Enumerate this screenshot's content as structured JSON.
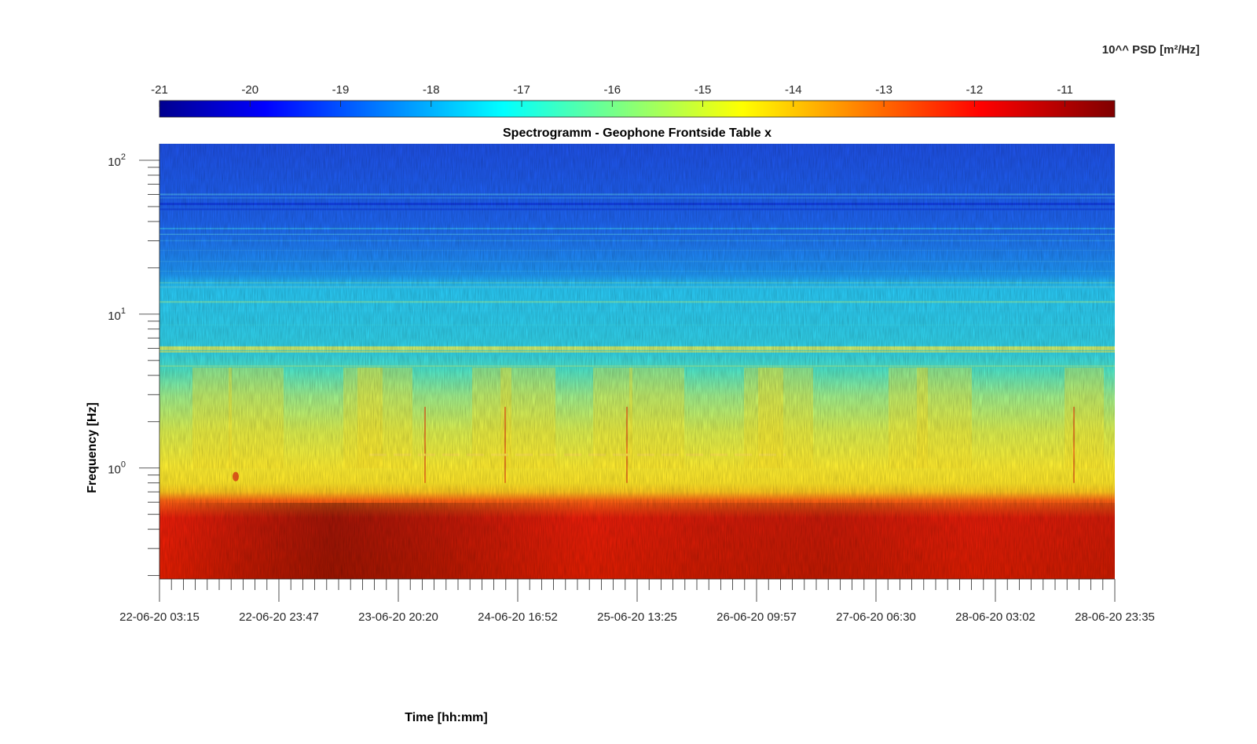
{
  "chart_data": {
    "type": "heatmap",
    "title": "Spectrogramm - Geophone Frontside Table x",
    "xlabel": "Time [hh:mm]",
    "ylabel": "Frequency [Hz]",
    "yscale": "log",
    "ylim": [
      0.19,
      128
    ],
    "x_tick_labels": [
      "22-06-20 03:15",
      "22-06-20 23:47",
      "23-06-20 20:20",
      "24-06-20 16:52",
      "25-06-20 13:25",
      "26-06-20 09:57",
      "27-06-20 06:30",
      "28-06-20 03:02",
      "28-06-20 23:35"
    ],
    "y_tick_labels": [
      {
        "base": "10",
        "exp": "0",
        "value": 1
      },
      {
        "base": "10",
        "exp": "1",
        "value": 10
      },
      {
        "base": "10",
        "exp": "2",
        "value": 100
      }
    ],
    "colorbar": {
      "label": "10^^ PSD [m²/Hz]",
      "colormap": "jet",
      "range": [
        -21,
        -10.45
      ],
      "ticks": [
        "-21",
        "-20",
        "-19",
        "-18",
        "-17",
        "-16",
        "-15",
        "-14",
        "-13",
        "-12",
        "-11"
      ]
    },
    "bands": [
      {
        "f_low": 0.19,
        "f_high": 0.7,
        "log_psd": -11.8
      },
      {
        "f_low": 0.7,
        "f_high": 1.3,
        "log_psd": -14.2
      },
      {
        "f_low": 1.3,
        "f_high": 5,
        "log_psd": -15.8
      },
      {
        "f_low": 5,
        "f_high": 20,
        "log_psd": -17.0
      },
      {
        "f_low": 20,
        "f_high": 128,
        "log_psd": -19.5
      }
    ]
  }
}
